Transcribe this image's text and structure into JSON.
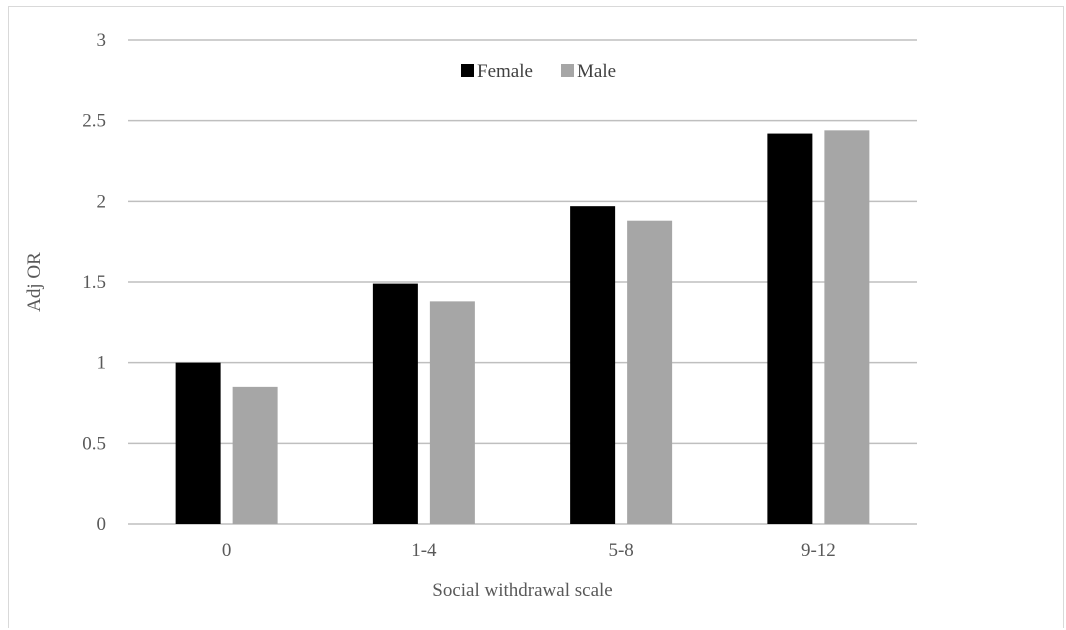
{
  "chart_data": {
    "type": "bar",
    "title": "",
    "xlabel": "Social withdrawal scale",
    "ylabel": "Adj OR",
    "categories": [
      "0",
      "1-4",
      "5-8",
      "9-12"
    ],
    "series": [
      {
        "name": "Female",
        "values": [
          1.0,
          1.49,
          1.97,
          2.42
        ],
        "color": "#000000"
      },
      {
        "name": "Male",
        "values": [
          0.85,
          1.38,
          1.88,
          2.44
        ],
        "color": "#a6a6a6"
      }
    ],
    "ylim": [
      0,
      3
    ],
    "yticks": [
      "0",
      "0.5",
      "1",
      "1.5",
      "2",
      "2.5",
      "3"
    ],
    "grid": true,
    "legend_position": "top-center"
  }
}
